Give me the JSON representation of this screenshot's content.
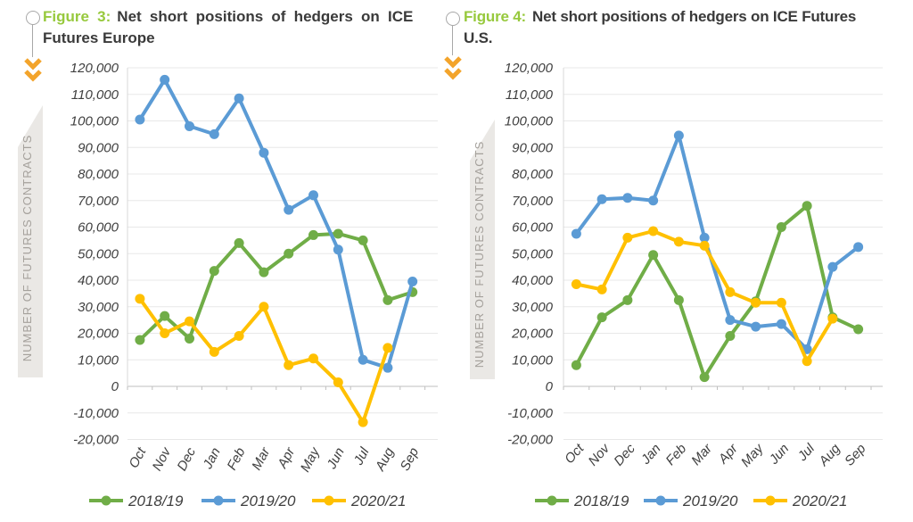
{
  "figures": [
    {
      "label": "Figure 3:",
      "title_line1": "Net short positions of hedgers on ICE",
      "title_line2": "Futures Europe"
    },
    {
      "label": "Figure 4:",
      "title_line1": "Net short positions of hedgers on ICE Futures",
      "title_line2": "U.S."
    }
  ],
  "icons": [
    {
      "name": "anchor-circle-icon"
    },
    {
      "name": "double-chevron-down-icon"
    }
  ],
  "colors": {
    "series_green": "#70AD47",
    "series_blue": "#5B9BD5",
    "series_yellow": "#FFC000",
    "figure_label_green": "#97C93D",
    "chevron_orange": "#F3A42B",
    "axis_text": "#3F3F3F",
    "gridline": "#E8E8E8",
    "axis_line": "#BFBFBF",
    "ribbon_bg": "#EAE8E5",
    "ribbon_text": "#A5A19C"
  },
  "chart_data": [
    {
      "type": "line",
      "title": "Figure 3: Net short positions of hedgers on ICE Futures Europe",
      "ylabel": "NUMBER OF FUTURES CONTRACTS",
      "xlabel": "",
      "categories": [
        "Oct",
        "Nov",
        "Dec",
        "Jan",
        "Feb",
        "Mar",
        "Apr",
        "May",
        "Jun",
        "Jul",
        "Aug",
        "Sep"
      ],
      "ylim": [
        -20000,
        120000
      ],
      "ytick_step": 10000,
      "grid": true,
      "legend_position": "bottom",
      "series": [
        {
          "name": "2018/19",
          "color": "#70AD47",
          "values": [
            17500,
            26500,
            18000,
            43500,
            54000,
            43000,
            50000,
            57000,
            57500,
            55000,
            32500,
            35500
          ]
        },
        {
          "name": "2019/20",
          "color": "#5B9BD5",
          "values": [
            100500,
            115500,
            98000,
            95000,
            108500,
            88000,
            66500,
            72000,
            51500,
            10000,
            7000,
            39500
          ]
        },
        {
          "name": "2020/21",
          "color": "#FFC000",
          "values": [
            33000,
            20000,
            24500,
            13000,
            19000,
            30000,
            8000,
            10500,
            1500,
            -13500,
            14500,
            null
          ]
        }
      ]
    },
    {
      "type": "line",
      "title": "Figure 4: Net short positions of hedgers on ICE Futures U.S.",
      "ylabel": "NUMBER OF FUTURES CONTRACTS",
      "xlabel": "",
      "categories": [
        "Oct",
        "Nov",
        "Dec",
        "Jan",
        "Feb",
        "Mar",
        "Apr",
        "May",
        "Jun",
        "Jul",
        "Aug",
        "Sep"
      ],
      "ylim": [
        -20000,
        120000
      ],
      "ytick_step": 10000,
      "grid": true,
      "legend_position": "bottom",
      "series": [
        {
          "name": "2018/19",
          "color": "#70AD47",
          "values": [
            8000,
            26000,
            32500,
            49500,
            32500,
            3500,
            19000,
            32000,
            60000,
            68000,
            26000,
            21500
          ]
        },
        {
          "name": "2019/20",
          "color": "#5B9BD5",
          "values": [
            57500,
            70500,
            71000,
            70000,
            94500,
            56000,
            25000,
            22500,
            23500,
            14000,
            45000,
            52500
          ]
        },
        {
          "name": "2020/21",
          "color": "#FFC000",
          "values": [
            38500,
            36500,
            56000,
            58500,
            54500,
            53000,
            35500,
            31500,
            31500,
            9500,
            25500,
            null
          ]
        }
      ]
    }
  ]
}
